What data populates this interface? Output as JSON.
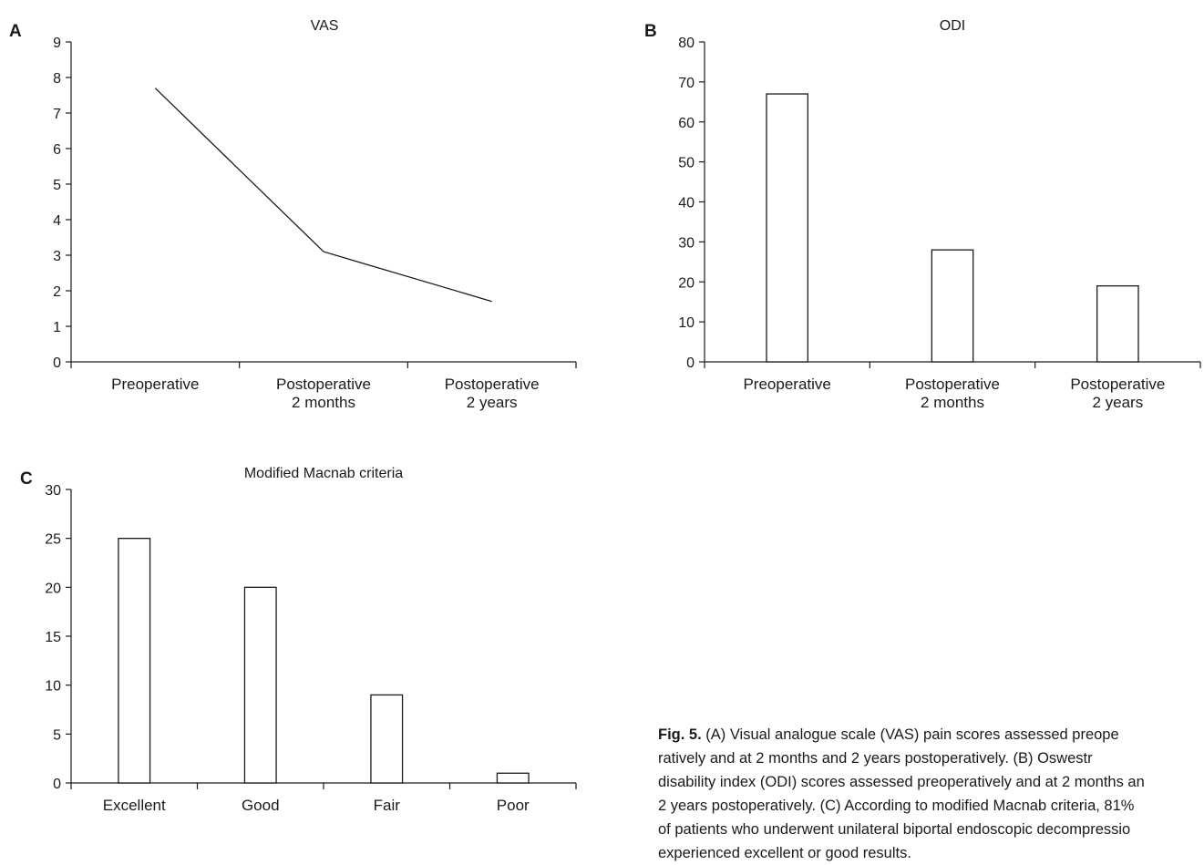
{
  "chart_data": [
    {
      "panel": "A",
      "type": "line",
      "title": "VAS",
      "categories": [
        [
          "Preoperative"
        ],
        [
          "Postoperative",
          "2 months"
        ],
        [
          "Postoperative",
          "2 years"
        ]
      ],
      "values": [
        7.7,
        3.1,
        1.7
      ],
      "ylim": [
        0,
        9
      ],
      "yticks": [
        0,
        1,
        2,
        3,
        4,
        5,
        6,
        7,
        8,
        9
      ],
      "xlabel": "",
      "ylabel": ""
    },
    {
      "panel": "B",
      "type": "bar",
      "title": "ODI",
      "categories": [
        [
          "Preoperative"
        ],
        [
          "Postoperative",
          "2 months"
        ],
        [
          "Postoperative",
          "2 years"
        ]
      ],
      "values": [
        67,
        28,
        19
      ],
      "ylim": [
        0,
        80
      ],
      "yticks": [
        0,
        10,
        20,
        30,
        40,
        50,
        60,
        70,
        80
      ],
      "xlabel": "",
      "ylabel": ""
    },
    {
      "panel": "C",
      "type": "bar",
      "title": "Modified Macnab criteria",
      "categories": [
        [
          "Excellent"
        ],
        [
          "Good"
        ],
        [
          "Fair"
        ],
        [
          "Poor"
        ]
      ],
      "values": [
        25,
        20,
        9,
        1
      ],
      "ylim": [
        0,
        30
      ],
      "yticks": [
        0,
        5,
        10,
        15,
        20,
        25,
        30
      ],
      "xlabel": "",
      "ylabel": ""
    }
  ],
  "caption": {
    "lead": "Fig. 5.",
    "lines": [
      " (A) Visual analogue scale (VAS) pain scores assessed preope",
      "ratively and at 2 months and 2 years postoperatively. (B) Oswestr",
      "disability index (ODI) scores assessed preoperatively and at 2 months an",
      "2 years postoperatively. (C) According to modified Macnab criteria, 81%",
      "of patients who underwent unilateral biportal endoscopic decompressio",
      "experienced excellent or good results."
    ]
  }
}
